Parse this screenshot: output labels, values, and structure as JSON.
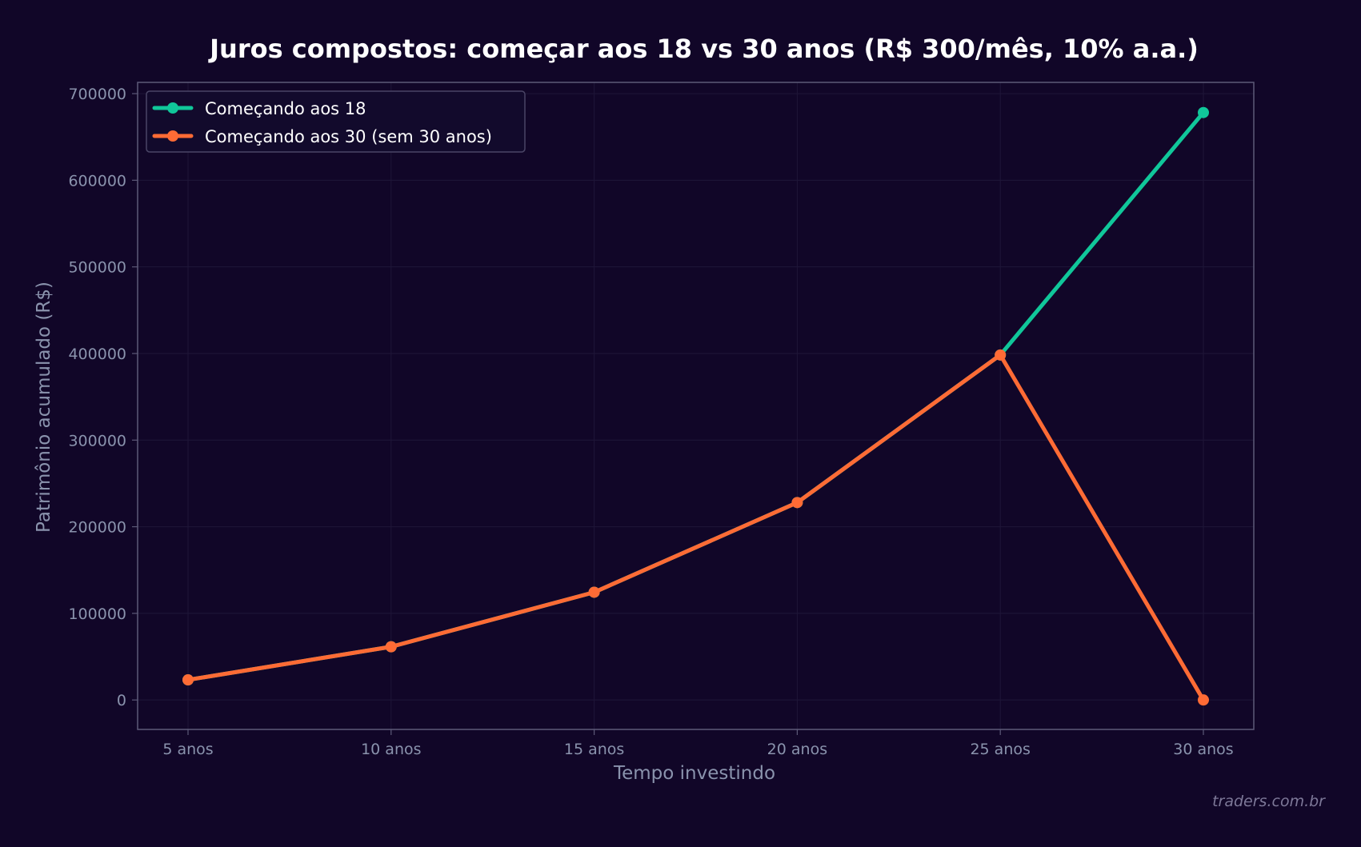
{
  "chart_data": {
    "type": "line",
    "title": "Juros compostos: começar aos 18 vs 30 anos (R$ 300/mês, 10% a.a.)",
    "xlabel": "Tempo investindo",
    "ylabel": "Patrimônio acumulado (R$)",
    "categories": [
      "5 anos",
      "10 anos",
      "15 anos",
      "20 anos",
      "25 anos",
      "30 anos"
    ],
    "ylim": [
      -34000,
      713000
    ],
    "yticks": [
      0,
      100000,
      200000,
      300000,
      400000,
      500000,
      600000,
      700000
    ],
    "grid": true,
    "legend_position": "top-left",
    "series": [
      {
        "name": "Começando aos 18",
        "color": "#10c79a",
        "values": [
          23230,
          61450,
          124370,
          227900,
          398300,
          678200
        ]
      },
      {
        "name": "Começando aos 30 (sem 30 anos)",
        "color": "#ff6b35",
        "values": [
          23230,
          61450,
          124370,
          227900,
          398300,
          0
        ]
      }
    ]
  },
  "watermark": "traders.com.br",
  "colors": {
    "background": "#110628",
    "axis": "#5d5a78",
    "grid": "#1f1638",
    "tick_text": "#8a93ad",
    "title": "#ffffff"
  }
}
